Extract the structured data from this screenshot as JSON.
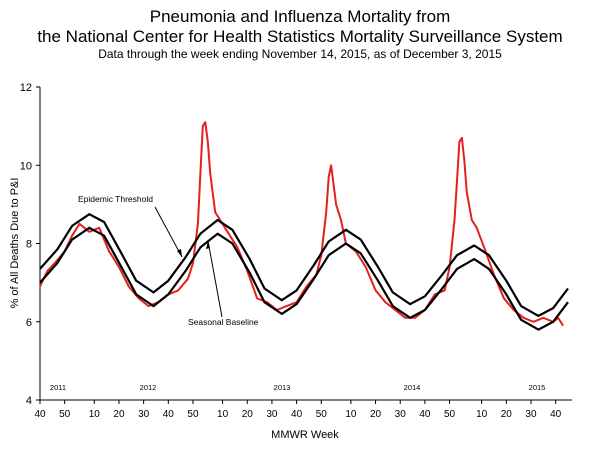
{
  "chart_data": {
    "type": "line",
    "title": "Pneumonia and Influenza Mortality from",
    "title_line2": "the National Center for Health Statistics Mortality Surveillance System",
    "subtitle": "Data through the week ending November 14, 2015, as of December 3, 2015",
    "y_label": "% of All Deaths Due to P&I",
    "x_label": "MMWR Week",
    "annotations": [
      "Epidemic Threshold",
      "Seasonal Baseline"
    ],
    "year_labels": [
      "2011",
      "2012",
      "2013",
      "2014",
      "2015"
    ],
    "xlim": [
      0,
      214
    ],
    "xticks": [
      {
        "value": 0,
        "label": "40"
      },
      {
        "value": 10,
        "label": "50"
      },
      {
        "value": 22,
        "label": "10"
      },
      {
        "value": 32,
        "label": "20"
      },
      {
        "value": 42,
        "label": "30"
      },
      {
        "value": 52,
        "label": "40"
      },
      {
        "value": 62,
        "label": "50"
      },
      {
        "value": 74,
        "label": "10"
      },
      {
        "value": 84,
        "label": "20"
      },
      {
        "value": 94,
        "label": "30"
      },
      {
        "value": 104,
        "label": "40"
      },
      {
        "value": 114,
        "label": "50"
      },
      {
        "value": 126,
        "label": "10"
      },
      {
        "value": 136,
        "label": "20"
      },
      {
        "value": 146,
        "label": "30"
      },
      {
        "value": 156,
        "label": "40"
      },
      {
        "value": 166,
        "label": "50"
      },
      {
        "value": 179,
        "label": "10"
      },
      {
        "value": 189,
        "label": "20"
      },
      {
        "value": 199,
        "label": "30"
      },
      {
        "value": 209,
        "label": "40"
      }
    ],
    "ylim": [
      4,
      12
    ],
    "yticks": [
      4,
      6,
      8,
      10,
      12
    ],
    "series": [
      {
        "color": "#e3211c",
        "width": 2,
        "x": [
          0,
          3,
          6,
          10,
          13,
          16,
          20,
          24,
          28,
          32,
          36,
          40,
          44,
          48,
          52,
          56,
          60,
          62,
          64,
          65,
          66,
          67,
          68,
          69,
          71,
          73,
          76,
          80,
          84,
          88,
          92,
          96,
          100,
          104,
          108,
          112,
          114,
          116,
          117,
          118,
          119,
          120,
          122,
          124,
          128,
          132,
          136,
          140,
          144,
          148,
          152,
          156,
          160,
          164,
          166,
          168,
          169,
          170,
          171,
          172,
          173,
          175,
          177,
          180,
          184,
          188,
          192,
          196,
          200,
          204,
          208,
          210,
          212
        ],
        "values": [
          6.9,
          7.3,
          7.5,
          7.8,
          8.2,
          8.5,
          8.3,
          8.4,
          7.8,
          7.4,
          6.9,
          6.6,
          6.4,
          6.5,
          6.7,
          6.8,
          7.1,
          7.5,
          8.5,
          9.8,
          11.0,
          11.1,
          10.6,
          9.8,
          8.8,
          8.6,
          8.3,
          7.9,
          7.3,
          6.6,
          6.5,
          6.3,
          6.4,
          6.5,
          6.9,
          7.2,
          7.7,
          8.8,
          9.7,
          10.0,
          9.5,
          9.0,
          8.6,
          8.0,
          7.8,
          7.4,
          6.8,
          6.5,
          6.3,
          6.1,
          6.1,
          6.3,
          6.7,
          6.8,
          7.4,
          8.6,
          9.6,
          10.6,
          10.7,
          10.1,
          9.3,
          8.6,
          8.4,
          7.9,
          7.2,
          6.6,
          6.3,
          6.1,
          6.0,
          6.1,
          6.0,
          6.1,
          5.9
        ]
      },
      {
        "color": "#000000",
        "width": 2.2,
        "x": [
          0,
          7,
          13,
          20,
          26,
          33,
          39,
          46,
          52,
          59,
          65,
          72,
          78,
          85,
          91,
          98,
          104,
          111,
          117,
          124,
          130,
          137,
          143,
          150,
          156,
          163,
          169,
          176,
          182,
          189,
          195,
          202,
          208,
          214
        ],
        "values": [
          7.35,
          7.85,
          8.45,
          8.75,
          8.55,
          7.75,
          7.05,
          6.75,
          7.05,
          7.65,
          8.25,
          8.6,
          8.35,
          7.6,
          6.85,
          6.55,
          6.8,
          7.45,
          8.05,
          8.35,
          8.1,
          7.4,
          6.75,
          6.45,
          6.65,
          7.2,
          7.7,
          7.95,
          7.7,
          7.05,
          6.4,
          6.15,
          6.35,
          6.85
        ]
      },
      {
        "color": "#000000",
        "width": 2.2,
        "x": [
          0,
          7,
          13,
          20,
          26,
          33,
          39,
          46,
          52,
          59,
          65,
          72,
          78,
          85,
          91,
          98,
          104,
          111,
          117,
          124,
          130,
          137,
          143,
          150,
          156,
          163,
          169,
          176,
          182,
          189,
          195,
          202,
          208,
          214
        ],
        "values": [
          7.0,
          7.5,
          8.1,
          8.4,
          8.2,
          7.4,
          6.7,
          6.4,
          6.7,
          7.3,
          7.9,
          8.25,
          8.0,
          7.25,
          6.5,
          6.2,
          6.45,
          7.1,
          7.7,
          8.0,
          7.75,
          7.05,
          6.4,
          6.1,
          6.3,
          6.85,
          7.35,
          7.6,
          7.35,
          6.7,
          6.05,
          5.8,
          6.0,
          6.5
        ]
      }
    ]
  }
}
